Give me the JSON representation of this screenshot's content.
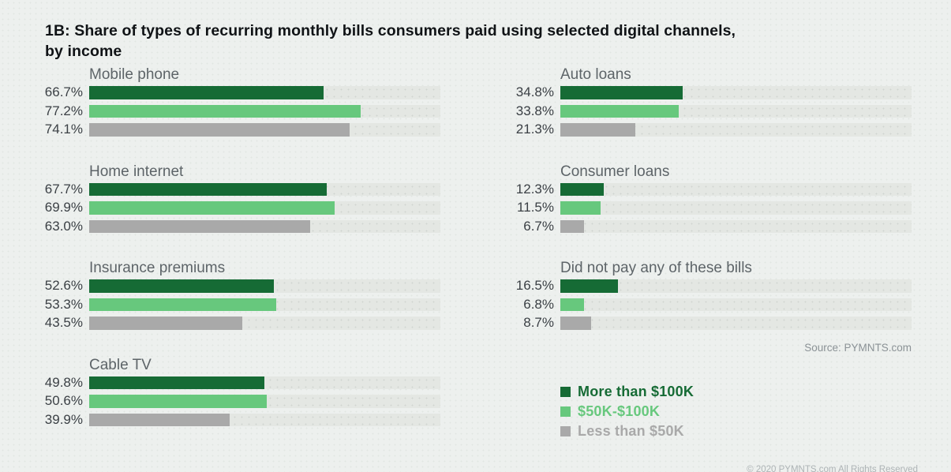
{
  "title": {
    "line1": "1B: Share of types of recurring monthly bills consumers paid using selected digital channels,",
    "line2": "by income"
  },
  "source": "Source: PYMNTS.com",
  "copyright": "© 2020 PYMNTS.com All Rights Reserved",
  "colors": {
    "dark_green": "#166b35",
    "light_green": "#67c87d",
    "gray": "#a9a9a9",
    "track": "#e4e7e3",
    "background": "#edf0ee",
    "title_text": "#101316",
    "group_title_text": "#5d6468",
    "value_label_text": "#3b4045",
    "source_text": "#8b9296",
    "copyright_text": "#aeb4b6"
  },
  "legend": {
    "items": [
      {
        "label": "More than $100K",
        "color": "#166b35"
      },
      {
        "label": "$50K-$100K",
        "color": "#67c87d"
      },
      {
        "label": "Less than $50K",
        "color": "#a9a9a9"
      }
    ]
  },
  "chart_data": {
    "type": "bar",
    "orientation": "horizontal",
    "unit": "percent",
    "xlim": [
      0,
      100
    ],
    "grid": false,
    "legend_position": "bottom-right",
    "series_names": [
      "More than $100K",
      "$50K-$100K",
      "Less than $50K"
    ],
    "groups": [
      {
        "label": "Mobile phone",
        "values": [
          66.7,
          77.2,
          74.1
        ],
        "value_labels": [
          "66.7%",
          "77.2%",
          "74.1%"
        ]
      },
      {
        "label": "Home internet",
        "values": [
          67.7,
          69.9,
          63.0
        ],
        "value_labels": [
          "67.7%",
          "69.9%",
          "63.0%"
        ]
      },
      {
        "label": "Insurance premiums",
        "values": [
          52.6,
          53.3,
          43.5
        ],
        "value_labels": [
          "52.6%",
          "53.3%",
          "43.5%"
        ]
      },
      {
        "label": "Cable TV",
        "values": [
          49.8,
          50.6,
          39.9
        ],
        "value_labels": [
          "49.8%",
          "50.6%",
          "39.9%"
        ]
      },
      {
        "label": "Auto loans",
        "values": [
          34.8,
          33.8,
          21.3
        ],
        "value_labels": [
          "34.8%",
          "33.8%",
          "21.3%"
        ]
      },
      {
        "label": "Consumer loans",
        "values": [
          12.3,
          11.5,
          6.7
        ],
        "value_labels": [
          "12.3%",
          "11.5%",
          "6.7%"
        ]
      },
      {
        "label": "Did not pay any of these bills",
        "values": [
          16.5,
          6.8,
          8.7
        ],
        "value_labels": [
          "16.5%",
          "6.8%",
          "8.7%"
        ]
      }
    ]
  }
}
